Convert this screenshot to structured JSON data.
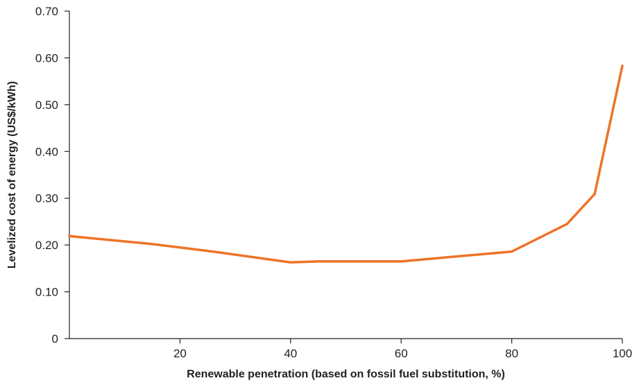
{
  "chart_data": {
    "type": "line",
    "title": "",
    "xlabel": "Renewable penetration (based on fossil fuel substitution, %)",
    "ylabel": "Levelized cost of energy (US$/kWh)",
    "xlim": [
      0,
      100
    ],
    "ylim": [
      0,
      0.7
    ],
    "x_ticks": [
      20,
      40,
      60,
      80,
      100
    ],
    "x_tick_labels": [
      "20",
      "40",
      "60",
      "80",
      "100"
    ],
    "y_ticks": [
      0,
      0.1,
      0.2,
      0.3,
      0.4,
      0.5,
      0.6,
      0.7
    ],
    "y_tick_labels": [
      "0",
      "0.10",
      "0.20",
      "0.30",
      "0.40",
      "0.50",
      "0.60",
      "0.70"
    ],
    "grid": false,
    "legend": "none",
    "series_color": "#ee7326",
    "series": [
      {
        "x": [
          0,
          15,
          26,
          40,
          45,
          60,
          80,
          90,
          95,
          100
        ],
        "y": [
          0.219,
          0.202,
          0.186,
          0.163,
          0.165,
          0.165,
          0.186,
          0.245,
          0.309,
          0.583
        ]
      }
    ]
  }
}
